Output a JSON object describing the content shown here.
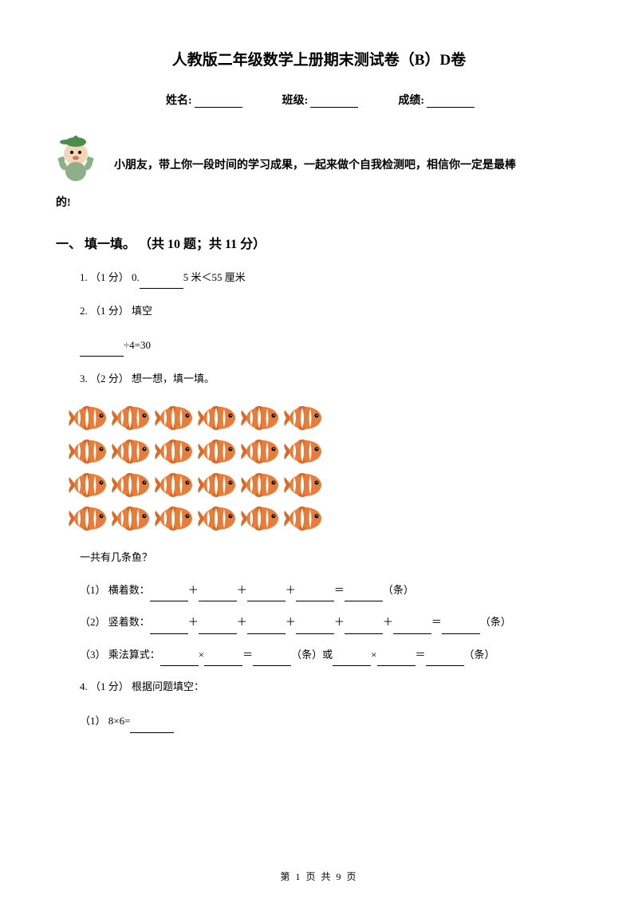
{
  "title": "人教版二年级数学上册期末测试卷（B）D卷",
  "info": {
    "name_label": "姓名:",
    "class_label": "班级:",
    "score_label": "成绩:"
  },
  "intro": {
    "line1": "小朋友，带上你一段时间的学习成果，一起来做个自我检测吧，相信你一定是最棒",
    "line2": "的!"
  },
  "section1": {
    "header": "一、 填一填。 （共 10 题；共 11 分）",
    "q1": {
      "prefix": "1. （1 分） 0.",
      "suffix": "5 米＜55 厘米"
    },
    "q2": {
      "line1": "2. （1 分） 填空",
      "line2_suffix": "÷4=30"
    },
    "q3": {
      "header": "3. （2 分） 想一想，填一填。",
      "fish_rows": 4,
      "fish_cols": 6,
      "fish_body_color": "#e87c3a",
      "fish_stripe_color": "#ffffff",
      "fish_fin_color": "#d96a28",
      "fish_eye_color": "#000000",
      "sub_title": "一共有几条鱼？",
      "sub1_prefix": "（1） 横着数：",
      "sub2_prefix": "（2） 竖着数：",
      "sub3_prefix": "（3） 乘法算式：",
      "unit": "（条）",
      "plus": "＋",
      "equals": "＝",
      "times": "×",
      "or": "或"
    },
    "q4": {
      "header": "4. （1 分） 根据问题填空：",
      "sub1": "（1） 8×6="
    }
  },
  "footer": {
    "text": "第 1 页 共 9 页"
  },
  "colors": {
    "text": "#000000",
    "background": "#ffffff",
    "avatar_skin": "#f5d5b8",
    "avatar_hat": "#4a8c4a",
    "avatar_shirt": "#8faf8a"
  }
}
